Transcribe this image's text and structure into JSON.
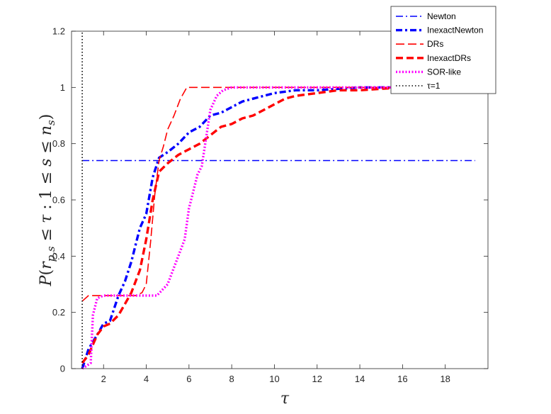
{
  "chart_data": {
    "type": "line",
    "title": "",
    "xlabel": "τ",
    "ylabel": "P(r_{p,s} ≤ τ : 1 ≤ s ≤ n_s)",
    "ylabel_parts": {
      "P": "P",
      "open": "(",
      "r": "r",
      "r_sub": "p,s",
      "le1": " ≤ ",
      "tau": "τ",
      "colon": " : ",
      "one": "1",
      "le2": " ≤ ",
      "s": "s",
      "le3": " ≤ ",
      "n": "n",
      "n_sub": "s",
      "close": ")"
    },
    "xlim": [
      0.5,
      20
    ],
    "ylim": [
      0,
      1.2
    ],
    "xticks": [
      2,
      4,
      6,
      8,
      10,
      12,
      14,
      16,
      18
    ],
    "yticks": [
      0,
      0.2,
      0.4,
      0.6,
      0.8,
      1,
      1.2
    ],
    "ytick_labels": [
      "0",
      "0.2",
      "0.4",
      "0.6",
      "0.8",
      "1",
      "1.2"
    ],
    "grid": false,
    "legend_position": "top-right",
    "series": [
      {
        "name": "Newton",
        "color": "#0000ff",
        "style": "dashdot",
        "width": "thin",
        "x": [
          1.0,
          19.4
        ],
        "y": [
          0.74,
          0.74
        ]
      },
      {
        "name": "InexactNewton",
        "color": "#0000ff",
        "style": "dashdot",
        "width": "thick",
        "x": [
          1.0,
          1.3,
          1.7,
          2.0,
          2.3,
          2.7,
          3.0,
          3.3,
          3.7,
          4.0,
          4.3,
          4.6,
          5.0,
          5.5,
          6.0,
          6.5,
          7.0,
          7.5,
          8.0,
          8.5,
          9.0,
          9.5,
          10.0,
          11.0,
          12.0,
          13.0,
          14.0,
          15.0,
          16.0,
          17.0,
          18.0,
          19.4
        ],
        "y": [
          0.0,
          0.07,
          0.12,
          0.16,
          0.17,
          0.26,
          0.31,
          0.38,
          0.5,
          0.55,
          0.68,
          0.75,
          0.77,
          0.8,
          0.84,
          0.86,
          0.9,
          0.91,
          0.93,
          0.95,
          0.96,
          0.97,
          0.98,
          0.99,
          0.99,
          0.995,
          1.0,
          1.0,
          1.0,
          1.0,
          1.0,
          1.0
        ]
      },
      {
        "name": "DRs",
        "color": "#ff0000",
        "style": "dashed",
        "width": "thin",
        "x": [
          1.0,
          1.3,
          1.5,
          3.5,
          3.8,
          4.0,
          4.2,
          4.4,
          4.6,
          4.8,
          5.0,
          5.3,
          5.6,
          5.9,
          6.5,
          7.0,
          19.4
        ],
        "y": [
          0.24,
          0.26,
          0.26,
          0.26,
          0.27,
          0.3,
          0.45,
          0.62,
          0.74,
          0.79,
          0.85,
          0.9,
          0.96,
          1.0,
          1.0,
          1.0,
          1.0
        ]
      },
      {
        "name": "InexactDRs",
        "color": "#ff0000",
        "style": "dashed",
        "width": "thick",
        "x": [
          1.0,
          1.3,
          1.7,
          2.0,
          2.3,
          2.7,
          3.0,
          3.3,
          3.7,
          4.0,
          4.3,
          4.6,
          5.0,
          5.5,
          6.0,
          6.5,
          7.0,
          7.5,
          8.0,
          8.5,
          9.0,
          9.5,
          10.0,
          10.5,
          11.0,
          12.0,
          13.0,
          14.0,
          15.0,
          16.0,
          18.0,
          19.4
        ],
        "y": [
          0.02,
          0.05,
          0.12,
          0.15,
          0.16,
          0.19,
          0.23,
          0.27,
          0.35,
          0.46,
          0.6,
          0.7,
          0.73,
          0.76,
          0.78,
          0.8,
          0.83,
          0.86,
          0.87,
          0.89,
          0.9,
          0.92,
          0.94,
          0.96,
          0.97,
          0.98,
          0.99,
          0.99,
          0.995,
          1.0,
          1.0,
          1.0
        ]
      },
      {
        "name": "SOR-like",
        "color": "#ff00ff",
        "style": "dotted",
        "width": "thick",
        "x": [
          1.0,
          1.4,
          1.5,
          1.7,
          2.0,
          3.0,
          4.0,
          4.5,
          5.0,
          5.3,
          5.6,
          5.8,
          6.0,
          6.2,
          6.4,
          6.6,
          6.8,
          7.0,
          7.3,
          7.6,
          8.0,
          9.0,
          10.0,
          19.4
        ],
        "y": [
          0.0,
          0.02,
          0.19,
          0.25,
          0.26,
          0.26,
          0.26,
          0.26,
          0.3,
          0.36,
          0.42,
          0.46,
          0.57,
          0.63,
          0.69,
          0.72,
          0.82,
          0.92,
          0.97,
          0.99,
          1.0,
          1.0,
          1.0,
          1.0
        ]
      },
      {
        "name": "τ=1",
        "color": "#000000",
        "style": "dotted",
        "width": "medium",
        "x": [
          1.0,
          1.0
        ],
        "y": [
          0.0,
          1.2
        ]
      }
    ]
  }
}
